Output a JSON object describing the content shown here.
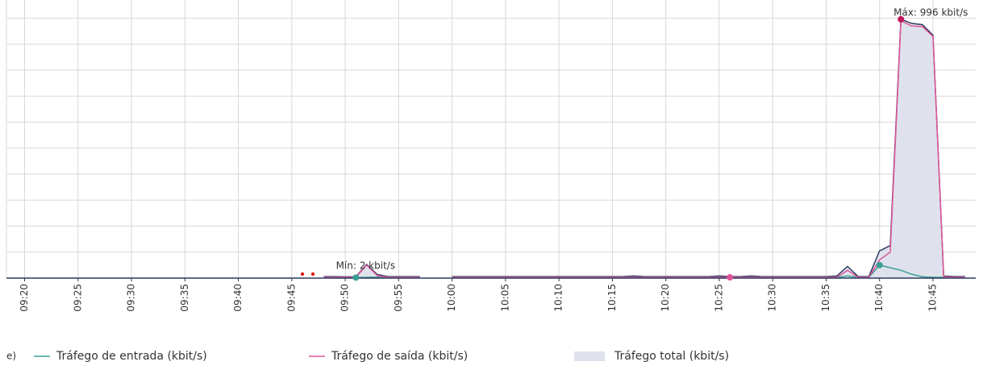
{
  "chart_data": {
    "type": "line",
    "x": [
      "09:48",
      "09:49",
      "09:50",
      "09:51",
      "09:52",
      "09:53",
      "09:54",
      "09:55",
      "09:56",
      "09:57",
      "09:58",
      "09:59",
      "10:00",
      "10:01",
      "10:02",
      "10:03",
      "10:04",
      "10:05",
      "10:06",
      "10:07",
      "10:08",
      "10:09",
      "10:10",
      "10:11",
      "10:12",
      "10:13",
      "10:14",
      "10:15",
      "10:16",
      "10:17",
      "10:18",
      "10:19",
      "10:20",
      "10:21",
      "10:22",
      "10:23",
      "10:24",
      "10:25",
      "10:26",
      "10:27",
      "10:28",
      "10:29",
      "10:30",
      "10:31",
      "10:32",
      "10:33",
      "10:34",
      "10:35",
      "10:36",
      "10:37",
      "10:38",
      "10:39",
      "10:40",
      "10:41",
      "10:42",
      "10:43",
      "10:44",
      "10:45",
      "10:46",
      "10:47",
      "10:48"
    ],
    "series": [
      {
        "name": "Tráfego total (kbit/s)",
        "color": "#2b3a5e",
        "fill": "#dfe2ec",
        "values": [
          6,
          6,
          5,
          5,
          53,
          14,
          6,
          6,
          6,
          6,
          null,
          null,
          6,
          6,
          6,
          6,
          6,
          6,
          6,
          6,
          6,
          6,
          6,
          6,
          6,
          6,
          6,
          6,
          6,
          8,
          6,
          6,
          6,
          6,
          6,
          6,
          6,
          8,
          6,
          6,
          8,
          6,
          6,
          6,
          6,
          6,
          6,
          6,
          8,
          45,
          6,
          6,
          105,
          125,
          996,
          980,
          975,
          935,
          8,
          6,
          6
        ]
      },
      {
        "name": "Tráfego de entrada (kbit/s)",
        "color": "#3a9e94",
        "values": [
          3,
          3,
          2,
          2,
          3,
          4,
          3,
          3,
          3,
          3,
          null,
          null,
          3,
          3,
          3,
          3,
          3,
          3,
          3,
          3,
          3,
          3,
          3,
          3,
          3,
          3,
          3,
          3,
          3,
          3,
          3,
          3,
          3,
          3,
          3,
          3,
          3,
          3,
          3,
          3,
          3,
          3,
          3,
          3,
          3,
          3,
          3,
          3,
          3,
          8,
          3,
          3,
          50,
          40,
          30,
          15,
          5,
          3,
          3,
          3,
          3
        ]
      },
      {
        "name": "Tráfego de saída (kbit/s)",
        "color": "#e0559a",
        "values": [
          3,
          3,
          3,
          3,
          50,
          10,
          3,
          3,
          3,
          3,
          null,
          null,
          3,
          3,
          3,
          3,
          3,
          3,
          3,
          3,
          3,
          3,
          3,
          3,
          3,
          3,
          3,
          3,
          3,
          3,
          3,
          3,
          3,
          3,
          3,
          3,
          3,
          3,
          3,
          3,
          3,
          3,
          3,
          3,
          3,
          3,
          3,
          3,
          3,
          30,
          3,
          3,
          70,
          100,
          990,
          970,
          968,
          930,
          5,
          3,
          3
        ]
      }
    ],
    "xlim": [
      "09:18",
      "10:49"
    ],
    "xticks": [
      "09:20",
      "09:25",
      "09:30",
      "09:35",
      "09:40",
      "09:45",
      "09:50",
      "09:55",
      "10:00",
      "10:05",
      "10:10",
      "10:15",
      "10:20",
      "10:25",
      "10:30",
      "10:35",
      "10:40",
      "10:45"
    ],
    "ylim": [
      0,
      1070
    ],
    "yticks": [
      100,
      200,
      300,
      400,
      500,
      600,
      700,
      800,
      900,
      1000
    ],
    "grid": true,
    "annotations": [
      {
        "text": "Máx: 996 kbit/s"
      },
      {
        "text": "Mín: 2 kbit/s"
      }
    ],
    "legend_prefix": "e)"
  }
}
